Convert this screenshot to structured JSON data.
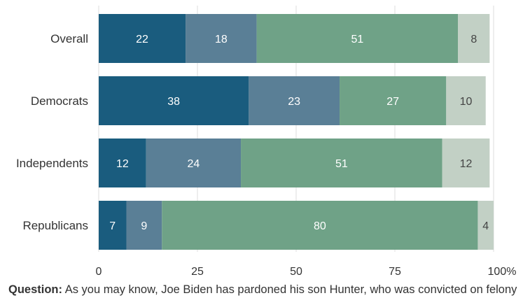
{
  "chart_data": {
    "type": "bar",
    "orientation": "horizontal",
    "stacked": true,
    "categories": [
      "Overall",
      "Democrats",
      "Independents",
      "Republicans"
    ],
    "series": [
      {
        "values": [
          22,
          38,
          12,
          7
        ],
        "color": "#1a5c7e",
        "label_color": "#ffffff"
      },
      {
        "values": [
          18,
          23,
          24,
          9
        ],
        "color": "#5a7f96",
        "label_color": "#ffffff"
      },
      {
        "values": [
          51,
          27,
          51,
          80
        ],
        "color": "#6fa287",
        "label_color": "#ffffff"
      },
      {
        "values": [
          8,
          10,
          12,
          4
        ],
        "color": "#c2d0c5",
        "label_color": "#444444"
      }
    ],
    "xlim": [
      0,
      100
    ],
    "x_ticks": [
      "0",
      "25",
      "50",
      "75",
      "100%"
    ],
    "x_tick_values": [
      0,
      25,
      50,
      75,
      100
    ],
    "grid": true
  },
  "footer": {
    "question_label": "Question:",
    "question_text": "As you may know, Joe Biden has pardoned his son Hunter, who was convicted on felony"
  }
}
